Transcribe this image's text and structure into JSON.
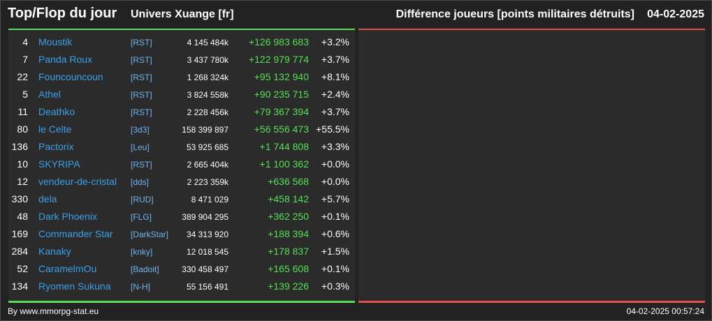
{
  "header": {
    "title": "Top/Flop du jour",
    "universe": "Univers Xuange [fr]",
    "metric": "Différence joueurs [points militaires détruits]",
    "date": "04-02-2025"
  },
  "rows": [
    {
      "rank": "4",
      "name": "Moustik",
      "alliance": "[RST]",
      "points": "4 145 484k",
      "diff": "+126 983 683",
      "pct": "+3.2%"
    },
    {
      "rank": "7",
      "name": "Panda Roux",
      "alliance": "[RST]",
      "points": "3 437 780k",
      "diff": "+122 979 774",
      "pct": "+3.7%"
    },
    {
      "rank": "22",
      "name": "Founcouncoun",
      "alliance": "[RST]",
      "points": "1 268 324k",
      "diff": "+95 132 940",
      "pct": "+8.1%"
    },
    {
      "rank": "5",
      "name": "Athel",
      "alliance": "[RST]",
      "points": "3 824 558k",
      "diff": "+90 235 715",
      "pct": "+2.4%"
    },
    {
      "rank": "11",
      "name": "Deathko",
      "alliance": "[RST]",
      "points": "2 228 456k",
      "diff": "+79 367 394",
      "pct": "+3.7%"
    },
    {
      "rank": "80",
      "name": "le Celte",
      "alliance": "[3d3]",
      "points": "158 399 897",
      "diff": "+56 556 473",
      "pct": "+55.5%"
    },
    {
      "rank": "136",
      "name": "Pactorix",
      "alliance": "[Leu]",
      "points": "53 925 685",
      "diff": "+1 744 808",
      "pct": "+3.3%"
    },
    {
      "rank": "10",
      "name": "SKYRIPA",
      "alliance": "[RST]",
      "points": "2 665 404k",
      "diff": "+1 100 362",
      "pct": "+0.0%"
    },
    {
      "rank": "12",
      "name": "vendeur-de-cristal",
      "alliance": "[dds]",
      "points": "2 223 359k",
      "diff": "+636 568",
      "pct": "+0.0%"
    },
    {
      "rank": "330",
      "name": "dela",
      "alliance": "[RUD]",
      "points": "8 471 029",
      "diff": "+458 142",
      "pct": "+5.7%"
    },
    {
      "rank": "48",
      "name": "Dark Phoenix",
      "alliance": "[FLG]",
      "points": "389 904 295",
      "diff": "+362 250",
      "pct": "+0.1%"
    },
    {
      "rank": "169",
      "name": "Commander Star",
      "alliance": "[DarkStar]",
      "points": "34 313 920",
      "diff": "+188 394",
      "pct": "+0.6%"
    },
    {
      "rank": "284",
      "name": "Kanaky",
      "alliance": "[knky]",
      "points": "12 018 545",
      "diff": "+178 837",
      "pct": "+1.5%"
    },
    {
      "rank": "52",
      "name": "CaramelmOu",
      "alliance": "[Badoit]",
      "points": "330 458 497",
      "diff": "+165 608",
      "pct": "+0.1%"
    },
    {
      "rank": "134",
      "name": "Ryomen Sukuna",
      "alliance": "[N-H]",
      "points": "55 156 491",
      "diff": "+139 226",
      "pct": "+0.3%"
    }
  ],
  "footer": {
    "source": "By www.mmorpg-stat.eu",
    "timestamp": "04-02-2025 00:57:24"
  },
  "colors": {
    "positive": "#55e055",
    "negative": "#e0524a",
    "player_link": "#3aa0e8"
  }
}
